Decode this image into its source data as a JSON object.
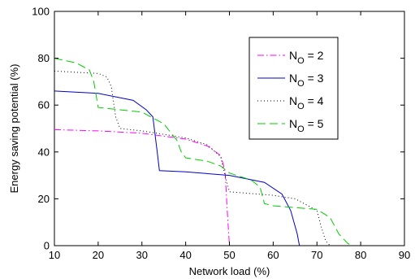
{
  "chart_data": {
    "type": "line",
    "xlabel": "Network load (%)",
    "ylabel": "Energy saving potential (%)",
    "xlim": [
      10,
      90
    ],
    "ylim": [
      0,
      100
    ],
    "xticks": [
      10,
      20,
      30,
      40,
      50,
      60,
      70,
      80,
      90
    ],
    "yticks": [
      0,
      20,
      40,
      60,
      80,
      100
    ],
    "grid": false,
    "legend_position": "upper-right",
    "series": [
      {
        "name_prefix": "N",
        "name_sub": "O",
        "name_suffix": " = 2",
        "color": "#ff00ff",
        "dash": "dashdot",
        "x": [
          10,
          20,
          30,
          40,
          45,
          48,
          49,
          49.5,
          50
        ],
        "y": [
          49.5,
          49.0,
          48.0,
          45.5,
          42.5,
          38.5,
          32.0,
          15.0,
          0
        ]
      },
      {
        "name_prefix": "N",
        "name_sub": "O",
        "name_suffix": " = 3",
        "color": "#0000cc",
        "dash": "solid",
        "x": [
          10,
          20,
          28,
          31,
          32.5,
          33.5,
          34,
          40,
          50,
          58,
          62,
          64,
          65.5,
          66
        ],
        "y": [
          66.0,
          65.0,
          62.0,
          58.0,
          55.0,
          40.0,
          32.0,
          31.5,
          30.0,
          27.0,
          22.0,
          15.0,
          5.0,
          0
        ]
      },
      {
        "name_prefix": "N",
        "name_sub": "O",
        "name_suffix": " = 4",
        "color": "#000000",
        "dash": "dotted",
        "x": [
          10,
          20,
          22,
          23,
          24,
          25,
          30,
          40,
          45,
          48,
          49,
          50,
          60,
          65,
          70,
          71,
          72,
          73
        ],
        "y": [
          74.5,
          73.5,
          72.0,
          68.0,
          55.0,
          50.0,
          49.0,
          46.0,
          43.0,
          38.0,
          30.0,
          23.0,
          21.5,
          20.0,
          15.0,
          8.0,
          2.0,
          0
        ]
      },
      {
        "name_prefix": "N",
        "name_sub": "O",
        "name_suffix": " = 5",
        "color": "#00cc00",
        "dash": "dashed",
        "x": [
          10,
          15,
          18,
          19,
          20,
          25,
          30,
          35,
          38,
          39,
          40,
          45,
          48,
          50,
          55,
          57,
          58,
          60,
          70,
          73,
          75,
          77,
          78
        ],
        "y": [
          80.0,
          78.0,
          75.0,
          70.0,
          59.0,
          58.0,
          57.0,
          52.0,
          45.0,
          40.0,
          37.5,
          36.0,
          34.0,
          31.0,
          28.0,
          25.0,
          18.0,
          17.0,
          15.5,
          12.0,
          5.0,
          1.0,
          0
        ]
      }
    ]
  }
}
